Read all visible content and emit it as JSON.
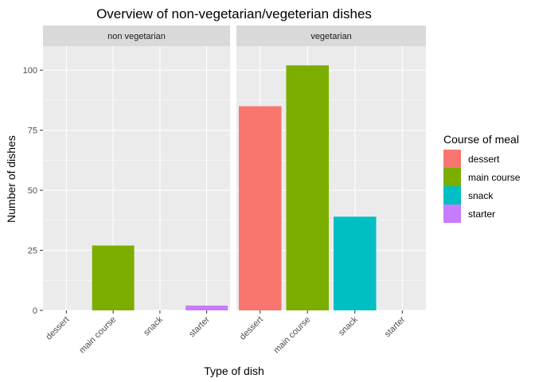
{
  "chart_data": {
    "type": "bar",
    "title": "Overview of non-vegetarian/vegeterian dishes",
    "xlabel": "Type of dish",
    "ylabel": "Number of dishes",
    "ylim": [
      0,
      110
    ],
    "yticks": [
      "0",
      "25",
      "50",
      "75",
      "100"
    ],
    "ytick_values": [
      0,
      25,
      50,
      75,
      100
    ],
    "categories": [
      "dessert",
      "main course",
      "snack",
      "starter"
    ],
    "facets": [
      {
        "label": "non vegetarian",
        "values": [
          0,
          27,
          0,
          2
        ]
      },
      {
        "label": "vegetarian",
        "values": [
          85,
          102,
          39,
          0
        ]
      }
    ],
    "legend": {
      "title": "Course of meal",
      "position": "right",
      "items": [
        {
          "label": "dessert",
          "color": "#F8766D"
        },
        {
          "label": "main course",
          "color": "#7CAE00"
        },
        {
          "label": "snack",
          "color": "#00BFC4"
        },
        {
          "label": "starter",
          "color": "#C77CFF"
        }
      ]
    },
    "grid": true
  }
}
